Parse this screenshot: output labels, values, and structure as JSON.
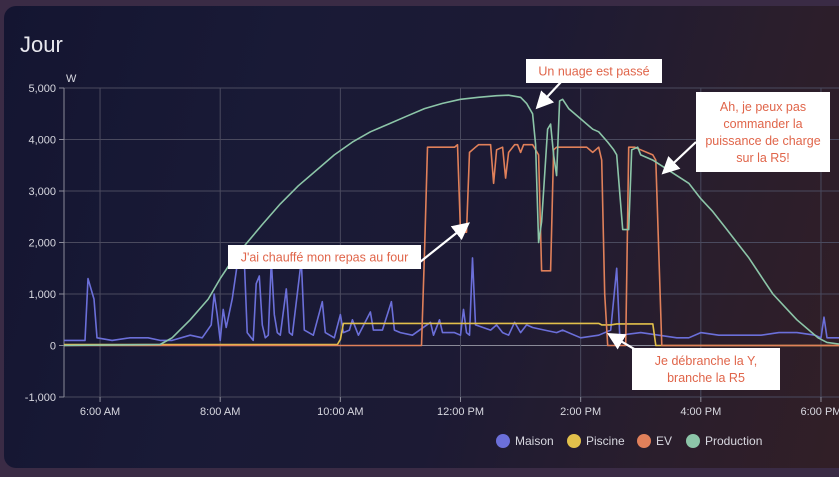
{
  "card": {
    "title": "Jour"
  },
  "chart_data": {
    "type": "line",
    "title": "Jour",
    "ylabel": "W",
    "xlabel": "",
    "ylim": [
      -1000,
      5000
    ],
    "yticks": [
      -1000,
      0,
      1000,
      2000,
      3000,
      4000,
      5000
    ],
    "ytick_labels": [
      "-1,000",
      "0",
      "1,000",
      "2,000",
      "3,000",
      "4,000",
      "5,000"
    ],
    "xlim": [
      5.4,
      18.3
    ],
    "xticks": [
      6,
      8,
      10,
      12,
      14,
      16,
      18
    ],
    "xtick_labels": [
      "6:00 AM",
      "8:00 AM",
      "10:00 AM",
      "12:00 PM",
      "2:00 PM",
      "4:00 PM",
      "6:00 PM"
    ],
    "grid": true,
    "legend_position": "bottom-right",
    "series": [
      {
        "name": "Maison",
        "color": "#6b6fd9",
        "points": [
          [
            5.4,
            100
          ],
          [
            5.75,
            100
          ],
          [
            5.8,
            1300
          ],
          [
            5.9,
            900
          ],
          [
            5.95,
            150
          ],
          [
            6.2,
            100
          ],
          [
            6.5,
            150
          ],
          [
            6.8,
            150
          ],
          [
            7.0,
            100
          ],
          [
            7.2,
            100
          ],
          [
            7.5,
            200
          ],
          [
            7.7,
            150
          ],
          [
            7.85,
            400
          ],
          [
            7.9,
            1000
          ],
          [
            7.95,
            600
          ],
          [
            8.0,
            100
          ],
          [
            8.05,
            700
          ],
          [
            8.1,
            350
          ],
          [
            8.2,
            900
          ],
          [
            8.3,
            1700
          ],
          [
            8.4,
            1700
          ],
          [
            8.45,
            250
          ],
          [
            8.55,
            100
          ],
          [
            8.6,
            1200
          ],
          [
            8.65,
            1350
          ],
          [
            8.7,
            400
          ],
          [
            8.75,
            150
          ],
          [
            8.8,
            200
          ],
          [
            8.85,
            1650
          ],
          [
            8.9,
            600
          ],
          [
            8.95,
            250
          ],
          [
            9.0,
            200
          ],
          [
            9.1,
            1100
          ],
          [
            9.15,
            250
          ],
          [
            9.2,
            200
          ],
          [
            9.35,
            1650
          ],
          [
            9.4,
            300
          ],
          [
            9.55,
            200
          ],
          [
            9.7,
            850
          ],
          [
            9.75,
            250
          ],
          [
            9.9,
            150
          ],
          [
            10.0,
            600
          ],
          [
            10.05,
            250
          ],
          [
            10.15,
            300
          ],
          [
            10.2,
            500
          ],
          [
            10.3,
            200
          ],
          [
            10.5,
            650
          ],
          [
            10.55,
            300
          ],
          [
            10.7,
            300
          ],
          [
            10.85,
            850
          ],
          [
            10.9,
            300
          ],
          [
            11.0,
            250
          ],
          [
            11.2,
            200
          ],
          [
            11.5,
            450
          ],
          [
            11.55,
            200
          ],
          [
            11.65,
            500
          ],
          [
            11.7,
            250
          ],
          [
            11.9,
            250
          ],
          [
            12.0,
            200
          ],
          [
            12.05,
            700
          ],
          [
            12.1,
            250
          ],
          [
            12.15,
            200
          ],
          [
            12.2,
            1700
          ],
          [
            12.25,
            400
          ],
          [
            12.5,
            300
          ],
          [
            12.6,
            400
          ],
          [
            12.7,
            250
          ],
          [
            12.8,
            200
          ],
          [
            12.9,
            450
          ],
          [
            13.0,
            250
          ],
          [
            13.1,
            400
          ],
          [
            13.2,
            350
          ],
          [
            13.4,
            300
          ],
          [
            13.6,
            250
          ],
          [
            13.7,
            300
          ],
          [
            14.0,
            150
          ],
          [
            14.3,
            200
          ],
          [
            14.5,
            300
          ],
          [
            14.6,
            1500
          ],
          [
            14.65,
            200
          ],
          [
            15.0,
            250
          ],
          [
            15.3,
            200
          ],
          [
            15.6,
            150
          ],
          [
            15.8,
            150
          ],
          [
            16.0,
            250
          ],
          [
            16.3,
            200
          ],
          [
            16.6,
            200
          ],
          [
            17.0,
            200
          ],
          [
            17.3,
            250
          ],
          [
            17.6,
            250
          ],
          [
            17.9,
            200
          ],
          [
            18.0,
            150
          ],
          [
            18.05,
            550
          ],
          [
            18.1,
            150
          ],
          [
            18.3,
            150
          ]
        ]
      },
      {
        "name": "Piscine",
        "color": "#e2c04b",
        "points": [
          [
            5.4,
            20
          ],
          [
            9.95,
            20
          ],
          [
            10.0,
            120
          ],
          [
            10.05,
            430
          ],
          [
            14.3,
            430
          ],
          [
            14.35,
            400
          ],
          [
            14.5,
            400
          ],
          [
            14.6,
            420
          ],
          [
            15.2,
            420
          ],
          [
            15.25,
            0
          ],
          [
            18.3,
            0
          ]
        ]
      },
      {
        "name": "EV",
        "color": "#e0805a",
        "points": [
          [
            5.4,
            0
          ],
          [
            11.35,
            0
          ],
          [
            11.4,
            1800
          ],
          [
            11.45,
            3850
          ],
          [
            11.9,
            3850
          ],
          [
            11.95,
            3900
          ],
          [
            12.0,
            2200
          ],
          [
            12.1,
            2200
          ],
          [
            12.15,
            3750
          ],
          [
            12.25,
            3850
          ],
          [
            12.3,
            3900
          ],
          [
            12.5,
            3900
          ],
          [
            12.55,
            3150
          ],
          [
            12.6,
            3800
          ],
          [
            12.7,
            3850
          ],
          [
            12.75,
            3250
          ],
          [
            12.8,
            3750
          ],
          [
            12.9,
            3900
          ],
          [
            12.95,
            3900
          ],
          [
            13.0,
            3750
          ],
          [
            13.05,
            3900
          ],
          [
            13.2,
            3900
          ],
          [
            13.3,
            3700
          ],
          [
            13.35,
            1450
          ],
          [
            13.5,
            1450
          ],
          [
            13.55,
            3800
          ],
          [
            13.6,
            3850
          ],
          [
            14.1,
            3850
          ],
          [
            14.2,
            3750
          ],
          [
            14.3,
            3850
          ],
          [
            14.35,
            3600
          ],
          [
            14.4,
            1000
          ],
          [
            14.45,
            0
          ],
          [
            14.75,
            0
          ],
          [
            14.8,
            3850
          ],
          [
            14.9,
            3850
          ],
          [
            15.0,
            3800
          ],
          [
            15.2,
            3700
          ],
          [
            15.25,
            3600
          ],
          [
            15.3,
            1800
          ],
          [
            15.35,
            0
          ],
          [
            18.3,
            0
          ]
        ]
      },
      {
        "name": "Production",
        "color": "#8cc5a8",
        "points": [
          [
            5.4,
            0
          ],
          [
            7.0,
            20
          ],
          [
            7.2,
            150
          ],
          [
            7.5,
            500
          ],
          [
            7.8,
            900
          ],
          [
            8.0,
            1300
          ],
          [
            8.2,
            1650
          ],
          [
            8.45,
            2000
          ],
          [
            8.7,
            2350
          ],
          [
            9.0,
            2750
          ],
          [
            9.3,
            3100
          ],
          [
            9.6,
            3400
          ],
          [
            9.9,
            3700
          ],
          [
            10.2,
            3950
          ],
          [
            10.5,
            4150
          ],
          [
            10.8,
            4300
          ],
          [
            11.1,
            4450
          ],
          [
            11.4,
            4600
          ],
          [
            11.7,
            4700
          ],
          [
            12.0,
            4780
          ],
          [
            12.3,
            4820
          ],
          [
            12.6,
            4850
          ],
          [
            12.8,
            4860
          ],
          [
            13.0,
            4820
          ],
          [
            13.1,
            4700
          ],
          [
            13.2,
            4500
          ],
          [
            13.25,
            3900
          ],
          [
            13.3,
            2000
          ],
          [
            13.35,
            2400
          ],
          [
            13.45,
            4200
          ],
          [
            13.5,
            4300
          ],
          [
            13.55,
            3700
          ],
          [
            13.6,
            3300
          ],
          [
            13.65,
            4750
          ],
          [
            13.7,
            4780
          ],
          [
            13.8,
            4600
          ],
          [
            14.0,
            4400
          ],
          [
            14.2,
            4200
          ],
          [
            14.3,
            4150
          ],
          [
            14.45,
            3950
          ],
          [
            14.55,
            3800
          ],
          [
            14.6,
            3700
          ],
          [
            14.7,
            2250
          ],
          [
            14.8,
            2250
          ],
          [
            14.85,
            3800
          ],
          [
            14.95,
            3850
          ],
          [
            15.0,
            3700
          ],
          [
            15.2,
            3600
          ],
          [
            15.4,
            3450
          ],
          [
            15.6,
            3300
          ],
          [
            15.8,
            3150
          ],
          [
            16.0,
            2850
          ],
          [
            16.2,
            2600
          ],
          [
            16.4,
            2300
          ],
          [
            16.6,
            2000
          ],
          [
            16.8,
            1700
          ],
          [
            17.0,
            1350
          ],
          [
            17.2,
            1000
          ],
          [
            17.4,
            750
          ],
          [
            17.6,
            500
          ],
          [
            17.8,
            300
          ],
          [
            17.95,
            150
          ],
          [
            18.1,
            60
          ],
          [
            18.3,
            30
          ]
        ]
      }
    ],
    "annotations": [
      {
        "text_lines": [
          "Un nuage est passé"
        ],
        "target": [
          13.3,
          4650
        ]
      },
      {
        "text_lines": [
          "J'ai chauffé mon repas au four"
        ],
        "target": [
          12.1,
          2340
        ]
      },
      {
        "text_lines": [
          "Ah, je peux pas",
          "commander la",
          "puissance de charge",
          "sur la R5!"
        ],
        "target": [
          15.4,
          3380
        ]
      },
      {
        "text_lines": [
          "Je débranche la Y,",
          "branche la R5"
        ],
        "target": [
          14.5,
          200
        ]
      }
    ]
  }
}
